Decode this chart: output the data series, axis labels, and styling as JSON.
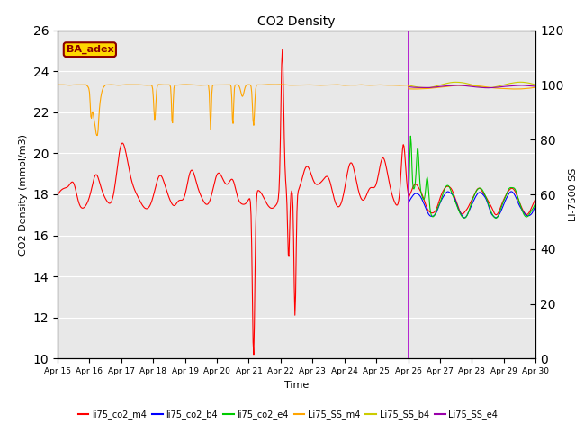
{
  "title": "CO2 Density",
  "ylabel_left": "CO2 Density (mmol/m3)",
  "ylabel_right": "LI-7500 SS",
  "xlabel": "Time",
  "ylim_left": [
    10,
    26
  ],
  "ylim_right": [
    0,
    120
  ],
  "annotation_text": "BA_adex",
  "annotation_color": "#8B0000",
  "annotation_bg": "#FFD700",
  "x_tick_labels": [
    "Apr 15",
    "Apr 16",
    "Apr 17",
    "Apr 18",
    "Apr 19",
    "Apr 20",
    "Apr 21",
    "Apr 22",
    "Apr 23",
    "Apr 24",
    "Apr 25",
    "Apr 26",
    "Apr 27",
    "Apr 28",
    "Apr 29",
    "Apr 30"
  ],
  "line_colors": {
    "li75_co2_m4": "#FF0000",
    "li75_co2_b4": "#0000FF",
    "li75_co2_e4": "#00CC00",
    "Li75_SS_m4": "#FFA500",
    "Li75_SS_b4": "#CCCC00",
    "Li75_SS_e4": "#9900AA"
  },
  "vline_x": 11.0,
  "vline_color": "#AA00CC",
  "background_color": "#E8E8E8",
  "grid_color": "#FFFFFF",
  "figsize": [
    6.4,
    4.8
  ],
  "dpi": 100
}
